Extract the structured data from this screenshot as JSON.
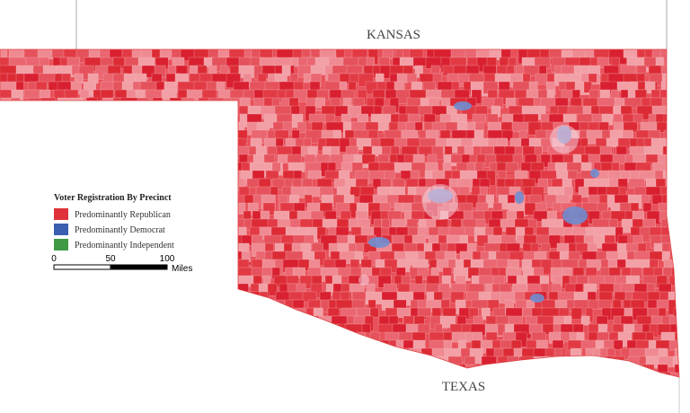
{
  "map": {
    "north_label": "KANSAS",
    "south_label": "TEXAS",
    "legend": {
      "title": "Voter Registration By Precinct",
      "items": [
        {
          "label": "Predominantly Republican",
          "color": "#e0313a"
        },
        {
          "label": "Predominantly Democrat",
          "color": "#3a5eb0"
        },
        {
          "label": "Predominantly Independent",
          "color": "#3f9a45"
        }
      ]
    },
    "scale": {
      "ticks": [
        0,
        50,
        100
      ],
      "unit": "Miles"
    }
  }
}
